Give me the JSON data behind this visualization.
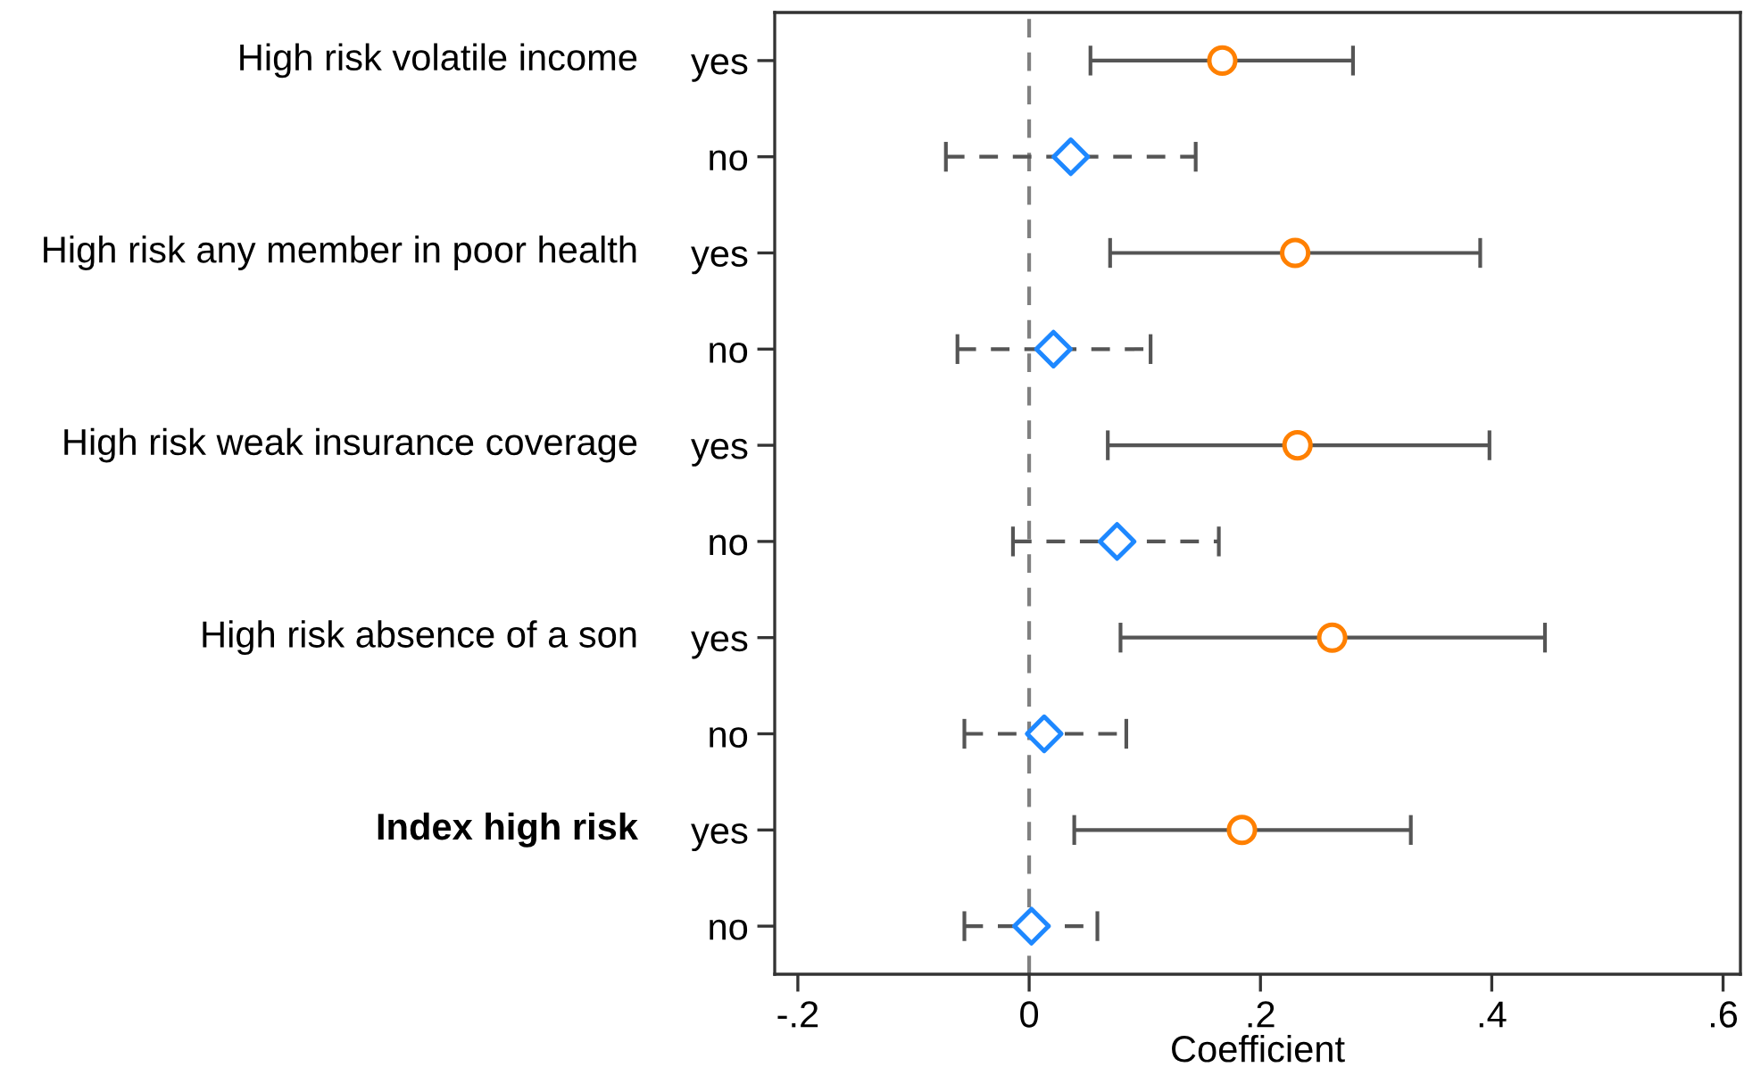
{
  "chart_data": {
    "type": "scatter",
    "orientation": "horizontal",
    "xlabel": "Coefficient",
    "categories": [
      "yes",
      "no",
      "yes",
      "no",
      "yes",
      "no",
      "yes",
      "no",
      "yes",
      "no"
    ],
    "annotations": [
      "High risk volatile income",
      "High risk any member in poor health",
      "High risk weak insurance coverage",
      "High risk absence of a son",
      "Index high risk"
    ],
    "series": [
      {
        "color": "#ff8000",
        "marker": "circle",
        "line_style": "solid",
        "values": [
          0.167,
          null,
          0.23,
          null,
          0.232,
          null,
          0.262,
          null,
          0.184,
          null
        ],
        "errors": [
          [
            0.053,
            0.28
          ],
          null,
          [
            0.07,
            0.39
          ],
          null,
          [
            0.068,
            0.398
          ],
          null,
          [
            0.079,
            0.446
          ],
          null,
          [
            0.039,
            0.33
          ],
          null
        ]
      },
      {
        "color": "#1e88ff",
        "marker": "diamond",
        "line_style": "dashed",
        "values": [
          null,
          0.036,
          null,
          0.021,
          null,
          0.076,
          null,
          0.013,
          null,
          0.002
        ],
        "errors": [
          null,
          [
            -0.072,
            0.144
          ],
          null,
          [
            -0.062,
            0.105
          ],
          null,
          [
            -0.014,
            0.164
          ],
          null,
          [
            -0.056,
            0.084
          ],
          null,
          [
            -0.056,
            0.059
          ]
        ]
      }
    ],
    "xlim": [
      -0.22,
      0.615
    ],
    "xticks": [
      {
        "value": -0.2,
        "label": "-.2"
      },
      0,
      {
        "value": 0.2,
        "label": ".2"
      },
      {
        "value": 0.4,
        "label": ".4"
      },
      {
        "value": 0.6,
        "label": ".6"
      }
    ],
    "ref_lines": [
      {
        "axis": "x",
        "value": 0,
        "color": "#808080",
        "line_style": "dashed"
      }
    ],
    "grid": false,
    "legend": false
  }
}
